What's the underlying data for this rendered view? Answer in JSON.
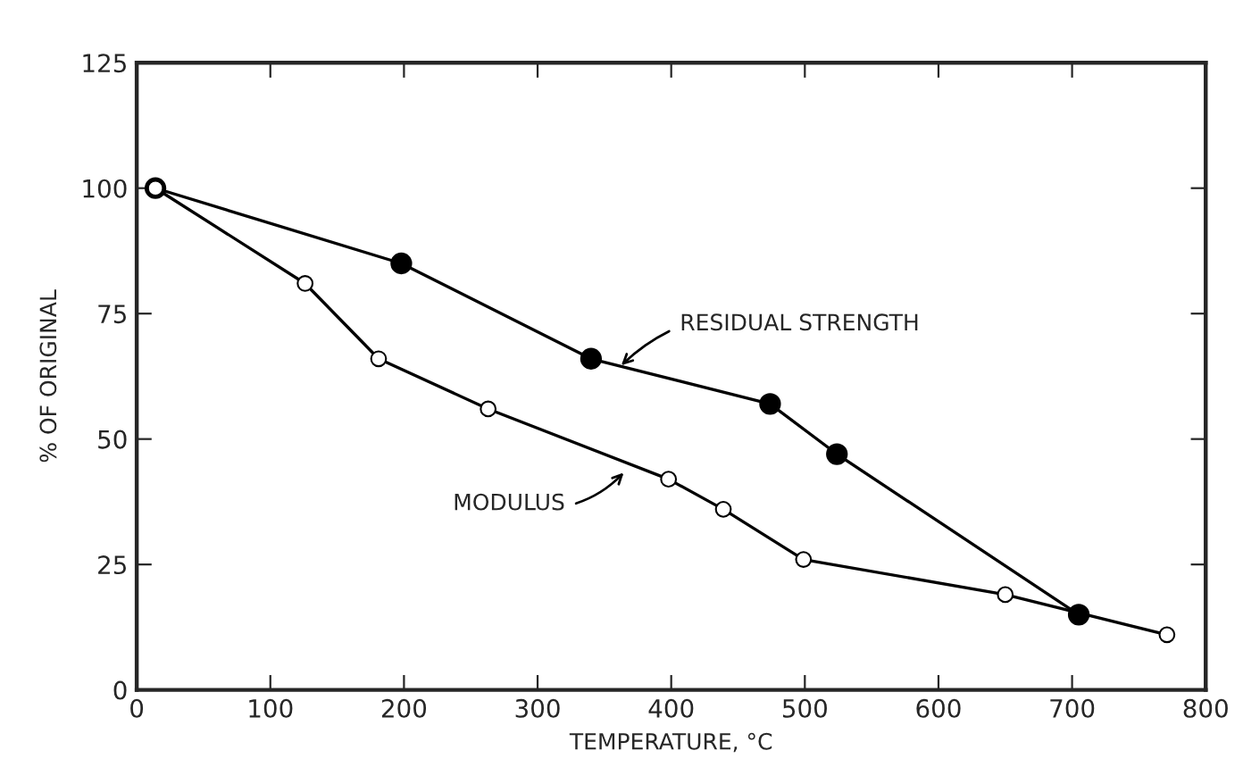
{
  "chart_data": {
    "type": "line",
    "xlabel": "TEMPERATURE, °C",
    "ylabel": "% OF ORIGINAL",
    "series": [
      {
        "color": "#000000",
        "x": [
          14,
          126,
          181,
          263,
          398,
          439,
          499,
          650,
          771
        ],
        "values": [
          100,
          81,
          66,
          56,
          42,
          36,
          26,
          19,
          11
        ]
      },
      {
        "color": "#000000",
        "x": [
          14,
          198,
          340,
          474,
          524,
          705
        ],
        "values": [
          100,
          85,
          66,
          57,
          47,
          15
        ]
      }
    ],
    "annotations": [
      {
        "text": "RESIDUAL STRENGTH",
        "x": 360,
        "y": 64
      },
      {
        "text": "MODULUS",
        "x": 367,
        "y": 44
      }
    ],
    "xlim": [
      0,
      800
    ],
    "xticks": [
      0,
      100,
      200,
      300,
      400,
      500,
      600,
      700,
      800
    ],
    "ylim": [
      0,
      125
    ],
    "yticks": [
      0,
      25,
      50,
      75,
      100,
      125
    ],
    "grid": false,
    "legend": false,
    "marker": "circle",
    "line_style": "solid"
  }
}
